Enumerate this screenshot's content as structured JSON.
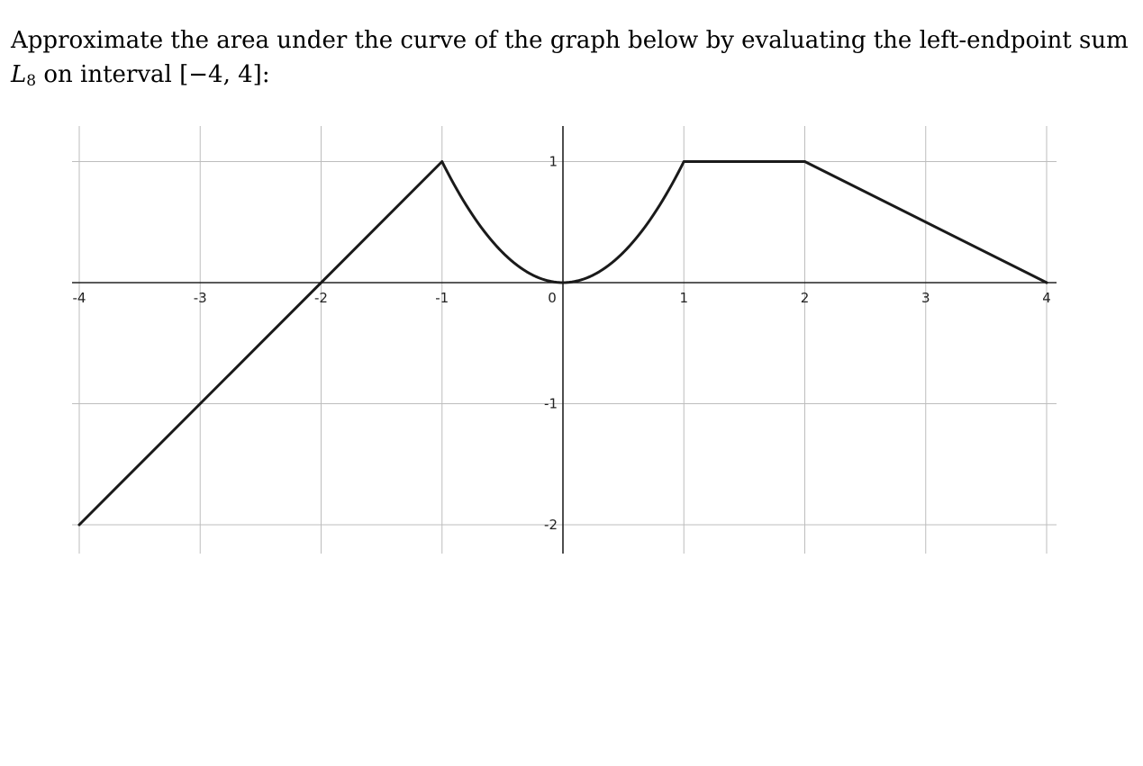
{
  "question": {
    "lead": "Approximate the area under the curve of the graph below by evaluating the left-endpoint sum",
    "sum_var": "L",
    "sum_sub": "8",
    "sum_mid": " on interval ",
    "interval": "[−4, 4]",
    "end": ":"
  },
  "chart_data": {
    "type": "line",
    "title": "",
    "xlabel": "",
    "ylabel": "",
    "xlim": [
      -4,
      4
    ],
    "ylim": [
      -2,
      1
    ],
    "grid": true,
    "x_ticks": [
      -4,
      -3,
      -2,
      -1,
      0,
      1,
      2,
      3,
      4
    ],
    "x_tick_labels": [
      "-4",
      "-3",
      "-2",
      "-1",
      "0",
      "1",
      "2",
      "3",
      "4"
    ],
    "y_ticks": [
      -2,
      -1,
      1
    ],
    "y_tick_labels": [
      "-2",
      "-1",
      "1"
    ],
    "series": [
      {
        "pieces": [
          {
            "kind": "linear",
            "points": [
              [
                -4,
                -2
              ],
              [
                -1,
                1
              ]
            ]
          },
          {
            "kind": "parabola",
            "formula": "y = x^2",
            "x_range": [
              -1,
              1
            ]
          },
          {
            "kind": "linear",
            "points": [
              [
                1,
                1
              ],
              [
                2,
                1
              ]
            ]
          },
          {
            "kind": "linear",
            "points": [
              [
                2,
                1
              ],
              [
                4,
                0
              ]
            ]
          }
        ],
        "x": [
          -4,
          -3,
          -2,
          -1,
          0,
          1,
          2,
          3,
          4
        ],
        "y": [
          -2,
          -1,
          0,
          1,
          0,
          1,
          1,
          0.5,
          0
        ]
      }
    ]
  }
}
